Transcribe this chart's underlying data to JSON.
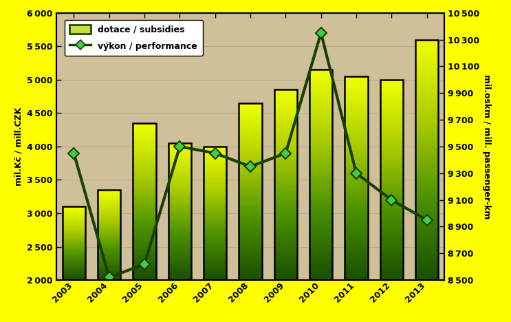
{
  "years": [
    2003,
    2004,
    2005,
    2006,
    2007,
    2008,
    2009,
    2010,
    2011,
    2012,
    2013
  ],
  "subsidies": [
    3100,
    3350,
    4350,
    4050,
    4000,
    4650,
    4850,
    5150,
    5050,
    5000,
    5600
  ],
  "performance": [
    9450,
    8520,
    8620,
    9500,
    9450,
    9350,
    9450,
    10350,
    9300,
    9100,
    8950
  ],
  "left_ylabel": "mil.Kč / mill.CZK",
  "right_ylabel": "mil.oskm / mill. passenger-km",
  "left_ylim": [
    2000,
    6000
  ],
  "right_ylim": [
    8500,
    10500
  ],
  "left_yticks": [
    2000,
    2500,
    3000,
    3500,
    4000,
    4500,
    5000,
    5500,
    6000
  ],
  "right_yticks": [
    8500,
    8700,
    8900,
    9100,
    9300,
    9500,
    9700,
    9900,
    10100,
    10300,
    10500
  ],
  "legend_subsidies": "dotace / subsidies",
  "legend_performance": "výkon / performance",
  "background_color": "#ffff00",
  "plot_bg_color": "#cfc09a",
  "line_color": "#1a4000",
  "marker_face_color": "#44cc44",
  "bar_grad_colors": [
    "#1a5000",
    "#4a9000",
    "#aacc00",
    "#eeff00"
  ],
  "border_thickness": 10
}
